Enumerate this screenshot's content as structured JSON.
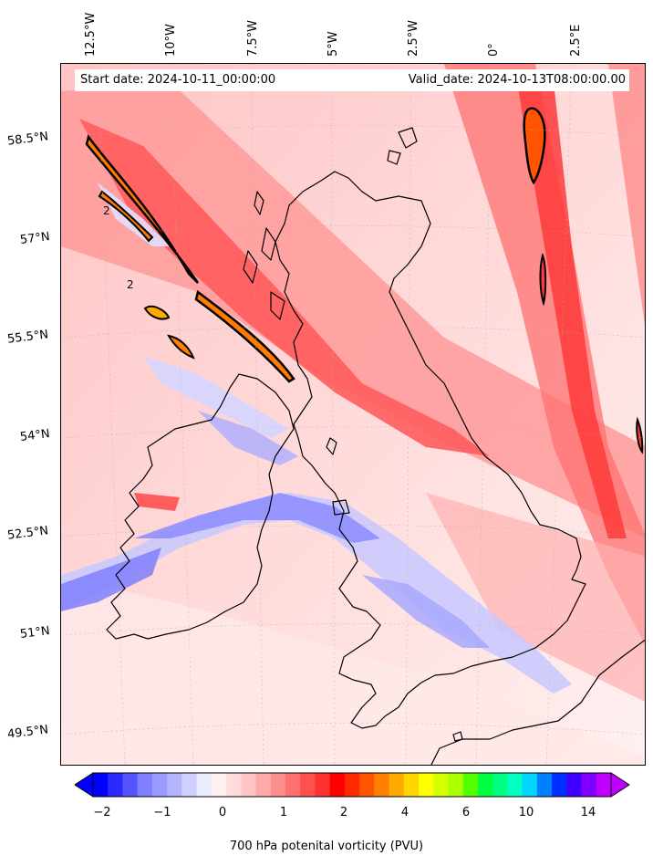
{
  "header": {
    "start_date": "Start date: 2024-10-11_00:00:00",
    "valid_date": "Valid_date: 2024-10-13T08:00:00.00"
  },
  "axes": {
    "longitude_labels": [
      "12.5°W",
      "10°W",
      "7.5°W",
      "5°W",
      "2.5°W",
      "0°",
      "2.5°E"
    ],
    "latitude_labels": [
      "58.5°N",
      "57°N",
      "55.5°N",
      "54°N",
      "52.5°N",
      "51°N",
      "49.5°N"
    ]
  },
  "colorbar": {
    "label": "700 hPa potenital vorticity (PVU)",
    "tick_labels": [
      "−2",
      "−1",
      "0",
      "1",
      "2",
      "4",
      "6",
      "10",
      "14"
    ],
    "colors": [
      "#0000ff",
      "#2a2aff",
      "#5555ff",
      "#7f7fff",
      "#9a9aff",
      "#b4b4ff",
      "#d0d0ff",
      "#ececff",
      "#fff0f0",
      "#ffdcdc",
      "#ffc4c4",
      "#ffaaaa",
      "#ff8e8e",
      "#ff7070",
      "#ff5050",
      "#ff3030",
      "#ff0000",
      "#ff2a00",
      "#ff5500",
      "#ff8000",
      "#ffaa00",
      "#ffd400",
      "#ffff00",
      "#d4ff00",
      "#aaff00",
      "#55ff00",
      "#00ff40",
      "#00ff80",
      "#00ffc0",
      "#00d4ff",
      "#0080ff",
      "#0030ff",
      "#4000ff",
      "#8000ff",
      "#c000ff"
    ],
    "under_color": "#0000ff",
    "over_color": "#c000ff"
  },
  "map": {
    "variable": "700 hPa potential vorticity",
    "region": "British Isles",
    "contour_labels": [
      "2",
      "2"
    ],
    "background_color": "#ffe3e3",
    "coastline_color": "#000000"
  }
}
